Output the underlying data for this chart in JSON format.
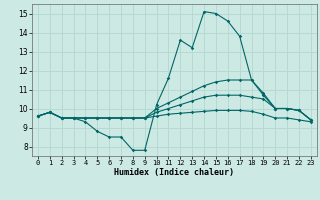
{
  "title": "",
  "xlabel": "Humidex (Indice chaleur)",
  "ylabel": "",
  "bg_color": "#cce9e4",
  "grid_color": "#b8d8d4",
  "line_color": "#006666",
  "xlim": [
    -0.5,
    23.5
  ],
  "ylim": [
    7.5,
    15.5
  ],
  "yticks": [
    8,
    9,
    10,
    11,
    12,
    13,
    14,
    15
  ],
  "xticks": [
    0,
    1,
    2,
    3,
    4,
    5,
    6,
    7,
    8,
    9,
    10,
    11,
    12,
    13,
    14,
    15,
    16,
    17,
    18,
    19,
    20,
    21,
    22,
    23
  ],
  "lines": [
    {
      "x": [
        0,
        1,
        2,
        3,
        4,
        5,
        6,
        7,
        8,
        9,
        10,
        11,
        12,
        13,
        14,
        15,
        16,
        17,
        18,
        19,
        20,
        21,
        22,
        23
      ],
      "y": [
        9.6,
        9.8,
        9.5,
        9.5,
        9.3,
        8.8,
        8.5,
        8.5,
        7.8,
        7.8,
        10.2,
        11.6,
        13.6,
        13.2,
        15.1,
        15.0,
        14.6,
        13.8,
        11.5,
        10.7,
        10.0,
        10.0,
        9.9,
        9.4
      ]
    },
    {
      "x": [
        0,
        1,
        2,
        3,
        4,
        5,
        6,
        7,
        8,
        9,
        10,
        11,
        12,
        13,
        14,
        15,
        16,
        17,
        18,
        19,
        20,
        21,
        22,
        23
      ],
      "y": [
        9.6,
        9.8,
        9.5,
        9.5,
        9.5,
        9.5,
        9.5,
        9.5,
        9.5,
        9.5,
        10.0,
        10.3,
        10.6,
        10.9,
        11.2,
        11.4,
        11.5,
        11.5,
        11.5,
        10.8,
        10.0,
        10.0,
        9.9,
        9.4
      ]
    },
    {
      "x": [
        0,
        1,
        2,
        3,
        4,
        5,
        6,
        7,
        8,
        9,
        10,
        11,
        12,
        13,
        14,
        15,
        16,
        17,
        18,
        19,
        20,
        21,
        22,
        23
      ],
      "y": [
        9.6,
        9.8,
        9.5,
        9.5,
        9.5,
        9.5,
        9.5,
        9.5,
        9.5,
        9.5,
        9.8,
        10.0,
        10.2,
        10.4,
        10.6,
        10.7,
        10.7,
        10.7,
        10.6,
        10.5,
        10.0,
        10.0,
        9.9,
        9.4
      ]
    },
    {
      "x": [
        0,
        1,
        2,
        3,
        4,
        5,
        6,
        7,
        8,
        9,
        10,
        11,
        12,
        13,
        14,
        15,
        16,
        17,
        18,
        19,
        20,
        21,
        22,
        23
      ],
      "y": [
        9.6,
        9.8,
        9.5,
        9.5,
        9.5,
        9.5,
        9.5,
        9.5,
        9.5,
        9.5,
        9.6,
        9.7,
        9.75,
        9.8,
        9.85,
        9.9,
        9.9,
        9.9,
        9.85,
        9.7,
        9.5,
        9.5,
        9.4,
        9.3
      ]
    }
  ]
}
